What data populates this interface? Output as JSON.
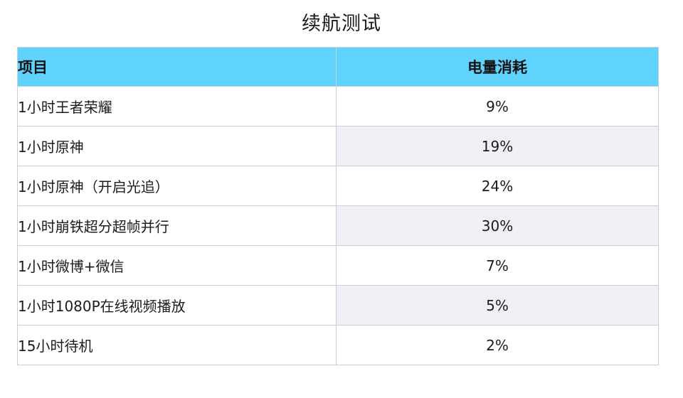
{
  "title": "续航测试",
  "headers": {
    "item": "项目",
    "usage": "电量消耗"
  },
  "rows": [
    {
      "item": "1小时王者荣耀",
      "usage": "9%"
    },
    {
      "item": "1小时原神",
      "usage": "19%"
    },
    {
      "item": "1小时原神（开启光追）",
      "usage": "24%"
    },
    {
      "item": "1小时崩铁超分超帧并行",
      "usage": "30%"
    },
    {
      "item": "1小时微博+微信",
      "usage": "7%"
    },
    {
      "item": "1小时1080P在线视频播放",
      "usage": "5%"
    },
    {
      "item": "15小时待机",
      "usage": "2%"
    }
  ],
  "colors": {
    "header_background": "#5fd3fb",
    "border": "#c9ced6",
    "alternate_row": "#eef0f5"
  },
  "chart_data": {
    "type": "table",
    "title": "续航测试",
    "columns": [
      "项目",
      "电量消耗"
    ],
    "rows": [
      [
        "1小时王者荣耀",
        "9%"
      ],
      [
        "1小时原神",
        "19%"
      ],
      [
        "1小时原神（开启光追）",
        "24%"
      ],
      [
        "1小时崩铁超分超帧并行",
        "30%"
      ],
      [
        "1小时微博+微信",
        "7%"
      ],
      [
        "1小时1080P在线视频播放",
        "5%"
      ],
      [
        "15小时待机",
        "2%"
      ]
    ]
  }
}
